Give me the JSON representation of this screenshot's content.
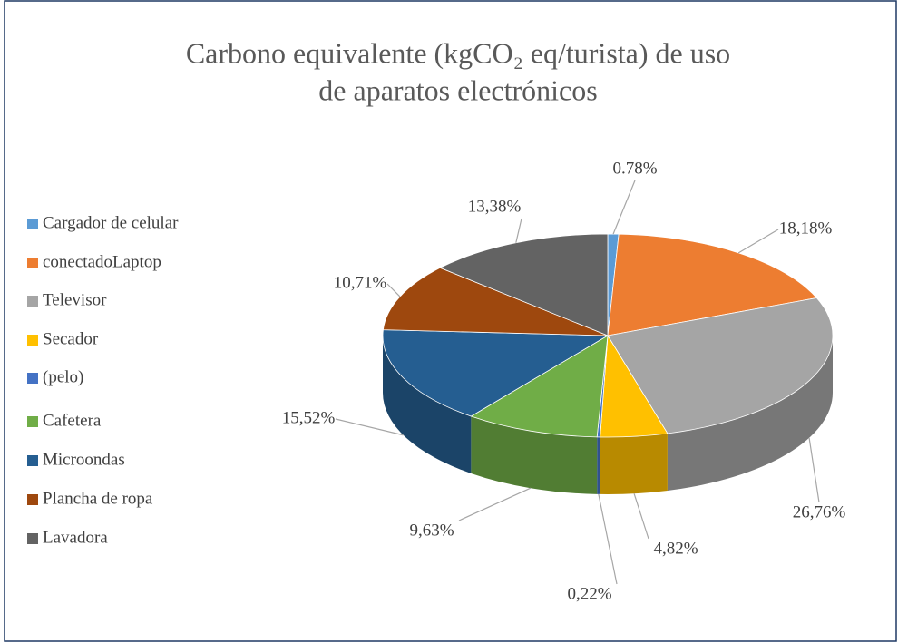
{
  "chart_data": {
    "type": "pie3d",
    "title": [
      "Carbono equivalente (kgCO₂ eq/turista) de uso",
      "de aparatos electrónicos"
    ],
    "categories": [
      "Cargador de celular",
      "conectadoLaptop",
      "Televisor",
      "Secador",
      "(pelo)",
      "Cafetera",
      "Microondas",
      "Plancha de ropa",
      "Lavadora"
    ],
    "values": [
      0.78,
      18.18,
      26.76,
      4.82,
      0.22,
      9.63,
      15.52,
      10.71,
      13.38
    ],
    "value_labels": [
      "0.78%",
      "18,18%",
      "26,76%",
      "4,82%",
      "0,22%",
      "9,63%",
      "15,52%",
      "10,71%",
      "13,38%"
    ],
    "colors": [
      "#5b9bd5",
      "#ed7d31",
      "#a5a5a5",
      "#ffc000",
      "#4472c4",
      "#70ad47",
      "#255e91",
      "#9e480e",
      "#636363"
    ],
    "legend": "left"
  }
}
